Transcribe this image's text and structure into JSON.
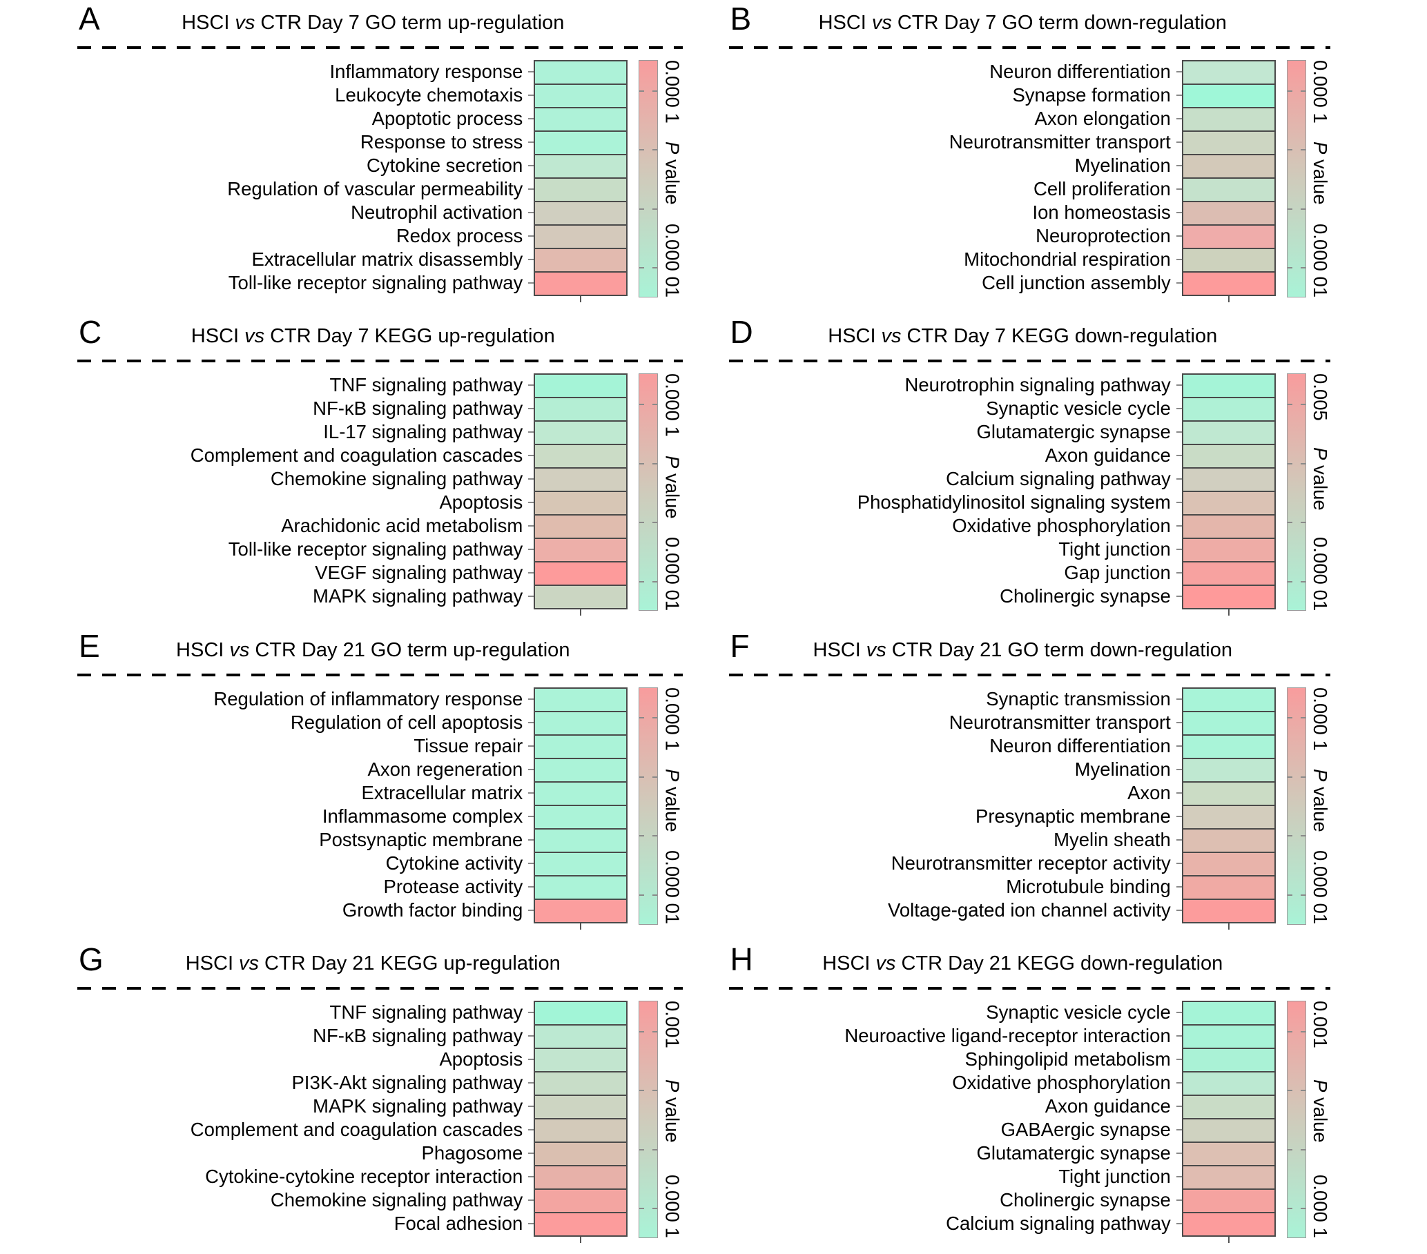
{
  "chart_data": [
    {
      "type": "heatmap",
      "panel": "A",
      "title": "HSCI vs CTR Day 7 GO term up-regulation",
      "title_parts": {
        "pre": "HSCI",
        "vs": "vs",
        "post": "CTR Day 7 GO term up-regulation"
      },
      "colorbar": {
        "label": "P value",
        "label_italic": "P",
        "label_rest": " value",
        "top_value": "0.000 1",
        "bottom_value": "0.000 01",
        "top_color": "#f89c9d",
        "mid_color": "#cfcbbb",
        "bottom_color": "#a9f3d7",
        "tick_positions_pct": [
          12.5,
          37.5,
          62.5,
          87.5
        ]
      },
      "rows": [
        {
          "label": "Inflammatory response",
          "color": "#adf2d8"
        },
        {
          "label": "Leukocyte chemotaxis",
          "color": "#adf2d8"
        },
        {
          "label": "Apoptotic process",
          "color": "#aef2d8"
        },
        {
          "label": "Response to stress",
          "color": "#abf3d8"
        },
        {
          "label": "Cytokine secretion",
          "color": "#bfe8d1"
        },
        {
          "label": "Regulation of vascular permeability",
          "color": "#c8ddc7"
        },
        {
          "label": "Neutrophil activation",
          "color": "#d0cfc0"
        },
        {
          "label": "Redox process",
          "color": "#d4c9bb"
        },
        {
          "label": "Extracellular matrix disassembly",
          "color": "#e2baaf"
        },
        {
          "label": "Toll-like receptor signaling pathway",
          "color": "#fb9d9d"
        }
      ]
    },
    {
      "type": "heatmap",
      "panel": "B",
      "title": "HSCI vs CTR Day 7 GO term down-regulation",
      "title_parts": {
        "pre": "HSCI",
        "vs": "vs",
        "post": "CTR Day 7 GO term down-regulation"
      },
      "colorbar": {
        "label": "P value",
        "label_italic": "P",
        "label_rest": " value",
        "top_value": "0.000 1",
        "bottom_value": "0.000 01",
        "top_color": "#f89c9d",
        "mid_color": "#cfcbbb",
        "bottom_color": "#a9f3d7",
        "tick_positions_pct": [
          12.5,
          37.5,
          62.5,
          87.5
        ]
      },
      "rows": [
        {
          "label": "Neuron differentiation",
          "color": "#c2e7d2"
        },
        {
          "label": "Synapse formation",
          "color": "#9ff7d8"
        },
        {
          "label": "Axon elongation",
          "color": "#c7dfc9"
        },
        {
          "label": "Neurotransmitter transport",
          "color": "#cdd6c2"
        },
        {
          "label": "Myelination",
          "color": "#d3c9b9"
        },
        {
          "label": "Cell proliferation",
          "color": "#c5e2cc"
        },
        {
          "label": "Ion homeostasis",
          "color": "#dcbdb2"
        },
        {
          "label": "Neuroprotection",
          "color": "#efacaa"
        },
        {
          "label": "Mitochondrial respiration",
          "color": "#cdd2bd"
        },
        {
          "label": "Cell junction assembly",
          "color": "#fd9b9b"
        }
      ]
    },
    {
      "type": "heatmap",
      "panel": "C",
      "title": "HSCI vs CTR Day 7 KEGG up-regulation",
      "title_parts": {
        "pre": "HSCI",
        "vs": "vs",
        "post": "CTR Day 7 KEGG up-regulation"
      },
      "colorbar": {
        "label": "P value",
        "label_italic": "P",
        "label_rest": " value",
        "top_value": "0.000 1",
        "bottom_value": "0.000 01",
        "top_color": "#f89c9d",
        "mid_color": "#cfcbbb",
        "bottom_color": "#a9f3d7",
        "tick_positions_pct": [
          12.5,
          37.5,
          62.5,
          87.5
        ]
      },
      "rows": [
        {
          "label": "TNF signaling pathway",
          "color": "#a5f4d7"
        },
        {
          "label": "NF-κB signaling pathway",
          "color": "#b4eed4"
        },
        {
          "label": "IL-17 signaling pathway",
          "color": "#bfe9d1"
        },
        {
          "label": "Complement and coagulation cascades",
          "color": "#cbdcc6"
        },
        {
          "label": "Chemokine signaling pathway",
          "color": "#d2cfbf"
        },
        {
          "label": "Apoptosis",
          "color": "#d7c6b5"
        },
        {
          "label": "Arachidonic acid metabolism",
          "color": "#e0bcae"
        },
        {
          "label": "Toll-like receptor signaling pathway",
          "color": "#edafa9"
        },
        {
          "label": "VEGF signaling pathway",
          "color": "#fd9b9b"
        },
        {
          "label": "MAPK signaling pathway",
          "color": "#cbd6c2"
        }
      ]
    },
    {
      "type": "heatmap",
      "panel": "D",
      "title": "HSCI vs CTR Day 7 KEGG down-regulation",
      "title_parts": {
        "pre": "HSCI",
        "vs": "vs",
        "post": "CTR Day 7 KEGG down-regulation"
      },
      "colorbar": {
        "label": "P value",
        "label_italic": "P",
        "label_rest": " value",
        "top_value": "0.005",
        "bottom_value": "0.000 01",
        "top_color": "#f89c9d",
        "mid_color": "#cfcbbb",
        "bottom_color": "#a9f3d7",
        "tick_positions_pct": [
          12.5,
          37.5,
          62.5,
          87.5
        ]
      },
      "rows": [
        {
          "label": "Neurotrophin signaling pathway",
          "color": "#a5f4d7"
        },
        {
          "label": "Synaptic vesicle cycle",
          "color": "#aff1d6"
        },
        {
          "label": "Glutamatergic synapse",
          "color": "#bfe8d1"
        },
        {
          "label": "Axon guidance",
          "color": "#c9dcc6"
        },
        {
          "label": "Calcium signaling pathway",
          "color": "#d1cfc0"
        },
        {
          "label": "Phosphatidylinositol signaling system",
          "color": "#dbc2b4"
        },
        {
          "label": "Oxidative phosphorylation",
          "color": "#e4b6ab"
        },
        {
          "label": "Tight junction",
          "color": "#eeaca6"
        },
        {
          "label": "Gap junction",
          "color": "#f7a2a0"
        },
        {
          "label": "Cholinergic synapse",
          "color": "#fe9a9a"
        }
      ]
    },
    {
      "type": "heatmap",
      "panel": "E",
      "title": "HSCI vs CTR Day 21 GO term up-regulation",
      "title_parts": {
        "pre": "HSCI",
        "vs": "vs",
        "post": "CTR Day 21 GO term up-regulation"
      },
      "colorbar": {
        "label": "P value",
        "label_italic": "P",
        "label_rest": " value",
        "top_value": "0.000 1",
        "bottom_value": "0.000 01",
        "top_color": "#f89c9d",
        "mid_color": "#cfcbbb",
        "bottom_color": "#a9f3d7",
        "tick_positions_pct": [
          12.5,
          37.5,
          62.5,
          87.5
        ]
      },
      "rows": [
        {
          "label": "Regulation of inflammatory response",
          "color": "#abf3d8"
        },
        {
          "label": "Regulation of cell apoptosis",
          "color": "#abf3d8"
        },
        {
          "label": "Tissue repair",
          "color": "#abf3d8"
        },
        {
          "label": "Axon regeneration",
          "color": "#abf3d8"
        },
        {
          "label": "Extracellular matrix",
          "color": "#abf3d8"
        },
        {
          "label": "Inflammasome complex",
          "color": "#abf3d8"
        },
        {
          "label": "Postsynaptic membrane",
          "color": "#abf3d8"
        },
        {
          "label": "Cytokine activity",
          "color": "#abf3d8"
        },
        {
          "label": "Protease activity",
          "color": "#abf3d8"
        },
        {
          "label": "Growth factor binding",
          "color": "#fb9e9e"
        }
      ]
    },
    {
      "type": "heatmap",
      "panel": "F",
      "title": "HSCI vs CTR Day 21 GO term down-regulation",
      "title_parts": {
        "pre": "HSCI",
        "vs": "vs",
        "post": "CTR Day 21 GO term down-regulation"
      },
      "colorbar": {
        "label": "P value",
        "label_italic": "P",
        "label_rest": " value",
        "top_value": "0.000 1",
        "bottom_value": "0.000 01",
        "top_color": "#f89c9d",
        "mid_color": "#cfcbbb",
        "bottom_color": "#a9f3d7",
        "tick_positions_pct": [
          12.5,
          37.5,
          62.5,
          87.5
        ]
      },
      "rows": [
        {
          "label": "Synaptic transmission",
          "color": "#a8f4d8"
        },
        {
          "label": "Neurotransmitter transport",
          "color": "#a8f4d8"
        },
        {
          "label": "Neuron differentiation",
          "color": "#a9f4d8"
        },
        {
          "label": "Myelination",
          "color": "#bfe8d1"
        },
        {
          "label": "Axon",
          "color": "#cbdcc5"
        },
        {
          "label": "Presynaptic membrane",
          "color": "#d3cdbd"
        },
        {
          "label": "Myelin sheath",
          "color": "#ddbfb2"
        },
        {
          "label": "Neurotransmitter receptor activity",
          "color": "#e8b3aa"
        },
        {
          "label": "Microtubule binding",
          "color": "#f0aaa4"
        },
        {
          "label": "Voltage-gated ion channel activity",
          "color": "#fc9c9c"
        }
      ]
    },
    {
      "type": "heatmap",
      "panel": "G",
      "title": "HSCI vs CTR Day 21 KEGG up-regulation",
      "title_parts": {
        "pre": "HSCI",
        "vs": "vs",
        "post": "CTR Day 21 KEGG up-regulation"
      },
      "colorbar": {
        "label": "P value",
        "label_italic": "P",
        "label_rest": " value",
        "top_value": "0.001",
        "bottom_value": "0.000 1",
        "top_color": "#f89c9d",
        "mid_color": "#cfcbbb",
        "bottom_color": "#a9f3d7",
        "tick_positions_pct": [
          12.5,
          37.5,
          62.5,
          87.5
        ]
      },
      "rows": [
        {
          "label": "TNF signaling pathway",
          "color": "#a2f5d7"
        },
        {
          "label": "NF-κB signaling pathway",
          "color": "#bce9d2"
        },
        {
          "label": "Apoptosis",
          "color": "#c2e5cf"
        },
        {
          "label": "PI3K-Akt signaling pathway",
          "color": "#c8ddc8"
        },
        {
          "label": "MAPK signaling pathway",
          "color": "#cdd5c2"
        },
        {
          "label": "Complement and coagulation cascades",
          "color": "#d3caba"
        },
        {
          "label": "Phagosome",
          "color": "#dabfb0"
        },
        {
          "label": "Cytokine-cytokine receptor interaction",
          "color": "#e7b1a9"
        },
        {
          "label": "Chemokine signaling pathway",
          "color": "#f3a5a1"
        },
        {
          "label": "Focal adhesion",
          "color": "#fc9c9c"
        }
      ]
    },
    {
      "type": "heatmap",
      "panel": "H",
      "title": "HSCI vs CTR Day 21 KEGG down-regulation",
      "title_parts": {
        "pre": "HSCI",
        "vs": "vs",
        "post": "CTR Day 21 KEGG down-regulation"
      },
      "colorbar": {
        "label": "P value",
        "label_italic": "P",
        "label_rest": " value",
        "top_value": "0.001",
        "bottom_value": "0.000 1",
        "top_color": "#f89c9d",
        "mid_color": "#cfcbbb",
        "bottom_color": "#a9f3d7",
        "tick_positions_pct": [
          12.5,
          37.5,
          62.5,
          87.5
        ]
      },
      "rows": [
        {
          "label": "Synaptic vesicle cycle",
          "color": "#a5f4d7"
        },
        {
          "label": "Neuroactive ligand-receptor interaction",
          "color": "#a8f3d7"
        },
        {
          "label": "Sphingolipid metabolism",
          "color": "#aaf2d6"
        },
        {
          "label": "Oxidative phosphorylation",
          "color": "#bce9d2"
        },
        {
          "label": "Axon guidance",
          "color": "#c9dcc6"
        },
        {
          "label": "GABAergic synapse",
          "color": "#cfd2c0"
        },
        {
          "label": "Glutamatergic synapse",
          "color": "#ddc0b3"
        },
        {
          "label": "Tight junction",
          "color": "#e0bcb1"
        },
        {
          "label": "Cholinergic synapse",
          "color": "#f5a3a0"
        },
        {
          "label": "Calcium signaling pathway",
          "color": "#fc9c9c"
        }
      ]
    }
  ]
}
